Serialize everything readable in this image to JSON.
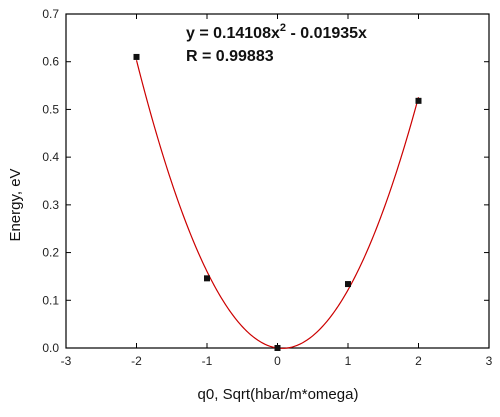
{
  "chart_data": {
    "type": "scatter",
    "title": "",
    "xlabel": "q0, Sqrt(hbar/m*omega)",
    "ylabel": "Energy, eV",
    "xlim": [
      -3,
      3
    ],
    "ylim": [
      0,
      0.7
    ],
    "xticks": [
      -3,
      -2,
      -1,
      0,
      1,
      2,
      3
    ],
    "yticks": [
      0.0,
      0.1,
      0.2,
      0.3,
      0.4,
      0.5,
      0.6,
      0.7
    ],
    "xtick_labels": [
      "-3",
      "-2",
      "-1",
      "0",
      "1",
      "2",
      "3"
    ],
    "ytick_labels": [
      "0.0",
      "0.1",
      "0.2",
      "0.3",
      "0.4",
      "0.5",
      "0.6",
      "0.7"
    ],
    "grid": false,
    "series": [
      {
        "kind": "points",
        "marker": "square",
        "color": "#111111",
        "x": [
          -2,
          -1,
          0,
          1,
          2
        ],
        "y": [
          0.61,
          0.146,
          0.0,
          0.134,
          0.518
        ]
      },
      {
        "kind": "fit",
        "color": "#cc0000",
        "equation": {
          "a": 0.14108,
          "b": -0.01935
        },
        "x_range": [
          -2,
          2
        ]
      }
    ],
    "annotations": {
      "equation_main": "y = 0.14108x",
      "equation_sup": "2",
      "equation_tail": " - 0.01935x",
      "r_value": "R = 0.99883"
    }
  }
}
